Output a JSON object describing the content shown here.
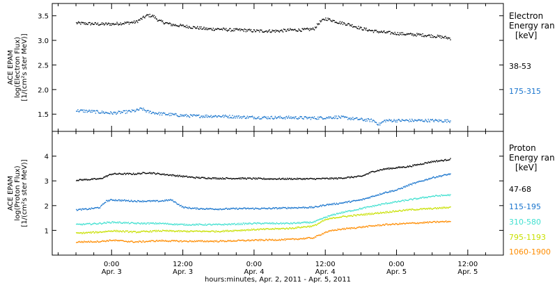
{
  "chart_data": [
    {
      "type": "scatter",
      "panel": "electron",
      "ylabel_lines": [
        "ACE EPAM",
        "log(Electron Flux)",
        "[1/(cm²s ster MeV)]"
      ],
      "legend_title_lines": [
        "Electron",
        "Energy ran",
        "[keV]"
      ],
      "ylim": [
        1.15,
        3.75
      ],
      "yticks": [
        1.5,
        2.0,
        2.5,
        3.0,
        3.5
      ],
      "ytick_labels": [
        "1.5",
        "2.0",
        "2.5",
        "3.0",
        "3.5"
      ],
      "series": [
        {
          "name": "38-53",
          "color": "#000000",
          "x": [
            0,
            2,
            4,
            6,
            8,
            10,
            11,
            12,
            13,
            14,
            16,
            18,
            20,
            22,
            24,
            26,
            28,
            30,
            32,
            34,
            36,
            38,
            40,
            41,
            42,
            43,
            44,
            46,
            48,
            50,
            52,
            54,
            56,
            58,
            60,
            62,
            63
          ],
          "values": [
            3.36,
            3.35,
            3.34,
            3.34,
            3.36,
            3.38,
            3.45,
            3.52,
            3.5,
            3.4,
            3.33,
            3.3,
            3.27,
            3.24,
            3.24,
            3.22,
            3.22,
            3.2,
            3.2,
            3.2,
            3.22,
            3.22,
            3.24,
            3.38,
            3.45,
            3.42,
            3.38,
            3.33,
            3.25,
            3.2,
            3.17,
            3.15,
            3.13,
            3.12,
            3.1,
            3.07,
            3.05
          ]
        },
        {
          "name": "175-315",
          "color": "#1874cd",
          "x": [
            0,
            2,
            4,
            6,
            8,
            10,
            11,
            12,
            14,
            16,
            18,
            20,
            24,
            28,
            32,
            36,
            40,
            44,
            48,
            50,
            51,
            52,
            56,
            60,
            63
          ],
          "values": [
            1.58,
            1.57,
            1.55,
            1.53,
            1.55,
            1.58,
            1.62,
            1.56,
            1.52,
            1.5,
            1.48,
            1.47,
            1.47,
            1.45,
            1.44,
            1.44,
            1.43,
            1.45,
            1.4,
            1.38,
            1.3,
            1.38,
            1.38,
            1.38,
            1.37
          ]
        }
      ]
    },
    {
      "type": "scatter",
      "panel": "proton",
      "ylabel_lines": [
        "ACE EPAM",
        "log(Proton Flux)",
        "[1/(cm²s ster MeV)]"
      ],
      "legend_title_lines": [
        "Proton",
        "Energy ran",
        "[keV]"
      ],
      "ylim": [
        0.0,
        5.0
      ],
      "yticks": [
        1,
        2,
        3,
        4
      ],
      "ytick_labels": [
        "1",
        "2",
        "3",
        "4"
      ],
      "xlabel": "hours:minutes, Apr.  2, 2011 - Apr.  5, 2011",
      "xlim": [
        -4,
        72
      ],
      "xticks": [
        6,
        18,
        30,
        42,
        54,
        66
      ],
      "xtick_labels": [
        [
          "0:00",
          "Apr. 3"
        ],
        [
          "12:00",
          "Apr. 3"
        ],
        [
          "0:00",
          "Apr. 4"
        ],
        [
          "12:00",
          "Apr. 4"
        ],
        [
          "0:00",
          "Apr. 5"
        ],
        [
          "12:00",
          "Apr. 5"
        ]
      ],
      "series": [
        {
          "name": "47-68",
          "color": "#000000",
          "x": [
            0,
            4,
            6,
            10,
            12,
            14,
            16,
            18,
            20,
            24,
            28,
            32,
            36,
            40,
            44,
            48,
            50,
            52,
            54,
            56,
            58,
            60,
            62,
            63
          ],
          "values": [
            3.05,
            3.1,
            3.3,
            3.3,
            3.35,
            3.3,
            3.25,
            3.2,
            3.15,
            3.12,
            3.12,
            3.1,
            3.1,
            3.1,
            3.12,
            3.2,
            3.4,
            3.5,
            3.55,
            3.6,
            3.7,
            3.8,
            3.85,
            3.9
          ]
        },
        {
          "name": "115-195",
          "color": "#1874cd",
          "x": [
            0,
            2,
            4,
            5,
            6,
            10,
            14,
            16,
            17,
            18,
            20,
            24,
            28,
            32,
            36,
            40,
            42,
            44,
            48,
            50,
            52,
            54,
            56,
            58,
            60,
            62,
            63
          ],
          "values": [
            1.85,
            1.88,
            1.95,
            2.2,
            2.25,
            2.2,
            2.2,
            2.25,
            2.1,
            1.95,
            1.9,
            1.88,
            1.9,
            1.9,
            1.93,
            1.95,
            2.05,
            2.1,
            2.25,
            2.4,
            2.55,
            2.65,
            2.85,
            3.0,
            3.15,
            3.25,
            3.3
          ]
        },
        {
          "name": "310-580",
          "color": "#40e0d0",
          "x": [
            0,
            4,
            6,
            10,
            14,
            18,
            24,
            30,
            36,
            40,
            42,
            44,
            48,
            52,
            56,
            60,
            63
          ],
          "values": [
            1.25,
            1.3,
            1.35,
            1.3,
            1.3,
            1.25,
            1.25,
            1.3,
            1.3,
            1.35,
            1.55,
            1.7,
            1.9,
            2.1,
            2.25,
            2.4,
            2.45
          ]
        },
        {
          "name": "795-1193",
          "color": "#c8e000",
          "x": [
            0,
            4,
            6,
            10,
            14,
            18,
            24,
            30,
            36,
            40,
            42,
            44,
            48,
            52,
            56,
            60,
            63
          ],
          "values": [
            0.9,
            0.95,
            1.0,
            0.95,
            1.0,
            0.98,
            0.98,
            1.05,
            1.1,
            1.2,
            1.45,
            1.55,
            1.65,
            1.75,
            1.85,
            1.9,
            1.95
          ]
        },
        {
          "name": "1060-1900",
          "color": "#ff8c00",
          "x": [
            0,
            4,
            6,
            10,
            14,
            18,
            24,
            30,
            36,
            40,
            42,
            44,
            48,
            52,
            56,
            60,
            63
          ],
          "values": [
            0.55,
            0.57,
            0.62,
            0.55,
            0.6,
            0.58,
            0.58,
            0.62,
            0.65,
            0.72,
            0.95,
            1.05,
            1.15,
            1.25,
            1.3,
            1.35,
            1.38
          ]
        }
      ]
    }
  ]
}
